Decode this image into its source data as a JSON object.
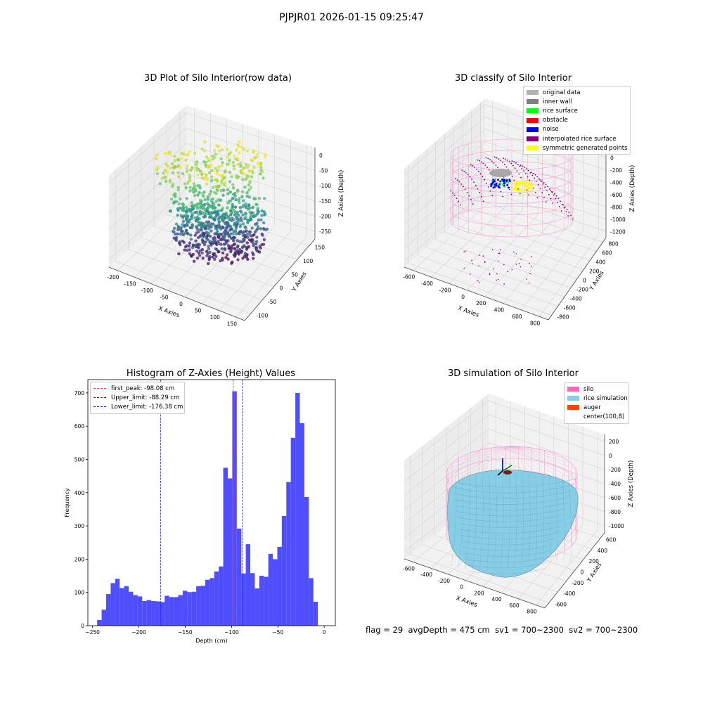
{
  "suptitle": "PJPJR01 2026-01-15 09:25:47",
  "colors": {
    "grid": "#d6d6d6",
    "pane_bg": "#f2f2f2",
    "hist_bar": "#4a4aff",
    "first_peak": "#ff3333",
    "limits": "#1a1acc",
    "silo_wire": "#ff88c8",
    "rice_fill": "#87cde6",
    "rice_edge": "#5a8aa0"
  },
  "panel_raw": {
    "title": "3D Plot of Silo Interior(row data)",
    "x_label": "X Axies",
    "y_label": "Y Axies",
    "z_label": "Z Axies (Depth)",
    "x_ticks": [
      "-200",
      "-150",
      "-100",
      "-50",
      "0",
      "50",
      "100",
      "150"
    ],
    "y_ticks": [
      "-100",
      "-50",
      "0",
      "50",
      "100",
      "150"
    ],
    "z_ticks": [
      "0",
      "-50",
      "-100",
      "-150",
      "-200",
      "-250"
    ],
    "colormap": "viridis"
  },
  "panel_classify": {
    "title": "3D classify of Silo Interior",
    "x_label": "X Axies",
    "y_label": "Y Axies",
    "z_label": "Z Axies (Depth)",
    "x_ticks": [
      "-600",
      "-400",
      "-200",
      "0",
      "200",
      "400",
      "600",
      "800"
    ],
    "y_ticks": [
      "-800",
      "-600",
      "-400",
      "-200",
      "0",
      "200",
      "400",
      "600",
      "800"
    ],
    "z_ticks": [
      "200",
      "0",
      "-200",
      "-400",
      "-600",
      "-800",
      "-1000",
      "-1200"
    ],
    "legend": [
      {
        "label": "original data",
        "color": "#b3b3b3"
      },
      {
        "label": "inner wall",
        "color": "#808080"
      },
      {
        "label": "rice surface",
        "color": "#00ff00"
      },
      {
        "label": "obstacle",
        "color": "#ff0000"
      },
      {
        "label": "noise",
        "color": "#0000ff"
      },
      {
        "label": "interpolated rice surface",
        "color": "#800080"
      },
      {
        "label": "symmetric generated points",
        "color": "#ffff00"
      }
    ]
  },
  "panel_hist": {
    "title": "Histogram of Z-Axies (Height) Values",
    "legend": [
      {
        "label": "first_peak: -98.08 cm",
        "color": "#ff3333"
      },
      {
        "label": "Upper_limit: -88.29 cm",
        "color": "#1a1acc"
      },
      {
        "label": "Lower_limit: -176.38 cm",
        "color": "#1a1acc"
      }
    ]
  },
  "chart_data": {
    "type": "bar",
    "title": "Histogram of Z-Axies (Height) Values",
    "xlabel": "Depth (cm)",
    "ylabel": "Frequency",
    "xlim": [
      -255,
      12
    ],
    "ylim": [
      0,
      740
    ],
    "x_ticks": [
      -250,
      -200,
      -150,
      -100,
      -50,
      0
    ],
    "y_ticks": [
      0,
      100,
      200,
      300,
      400,
      500,
      600,
      700
    ],
    "bin_width": 4.86,
    "bin_start": -245,
    "values": [
      17,
      48,
      95,
      128,
      141,
      113,
      119,
      102,
      92,
      88,
      74,
      77,
      74,
      73,
      71,
      90,
      86,
      86,
      92,
      105,
      101,
      102,
      119,
      120,
      138,
      143,
      163,
      178,
      475,
      443,
      705,
      292,
      157,
      245,
      158,
      112,
      150,
      147,
      216,
      200,
      237,
      330,
      432,
      565,
      700,
      609,
      387,
      143,
      72
    ],
    "vlines": [
      {
        "name": "first_peak",
        "x": -98.08
      },
      {
        "name": "Upper_limit",
        "x": -88.29
      },
      {
        "name": "Lower_limit",
        "x": -176.38
      }
    ]
  },
  "panel_sim": {
    "title": "3D simulation of Silo Interior",
    "x_label": "X Axies",
    "y_label": "Y Axies",
    "z_label": "Z Axies (Depth)",
    "x_ticks": [
      "-600",
      "-400",
      "-200",
      "0",
      "200",
      "400",
      "600",
      "800"
    ],
    "y_ticks": [
      "-600",
      "-400",
      "-200",
      "0",
      "200",
      "400",
      "600"
    ],
    "z_ticks": [
      "200",
      "0",
      "-200",
      "-400",
      "-600",
      "-800",
      "-1000"
    ],
    "legend": [
      {
        "label": "silo",
        "color": "#ff69b4"
      },
      {
        "label": "rice simulation",
        "color": "#87ceeb"
      },
      {
        "label": "auger",
        "color": "#ff4500"
      },
      {
        "label": "center(100,8)",
        "color": ""
      }
    ]
  },
  "footer": {
    "flag": "flag = 29",
    "avg": "avgDepth = 475 cm",
    "sv1": "sv1 = 700~2300",
    "sv2": "sv2 = 700~2300"
  }
}
